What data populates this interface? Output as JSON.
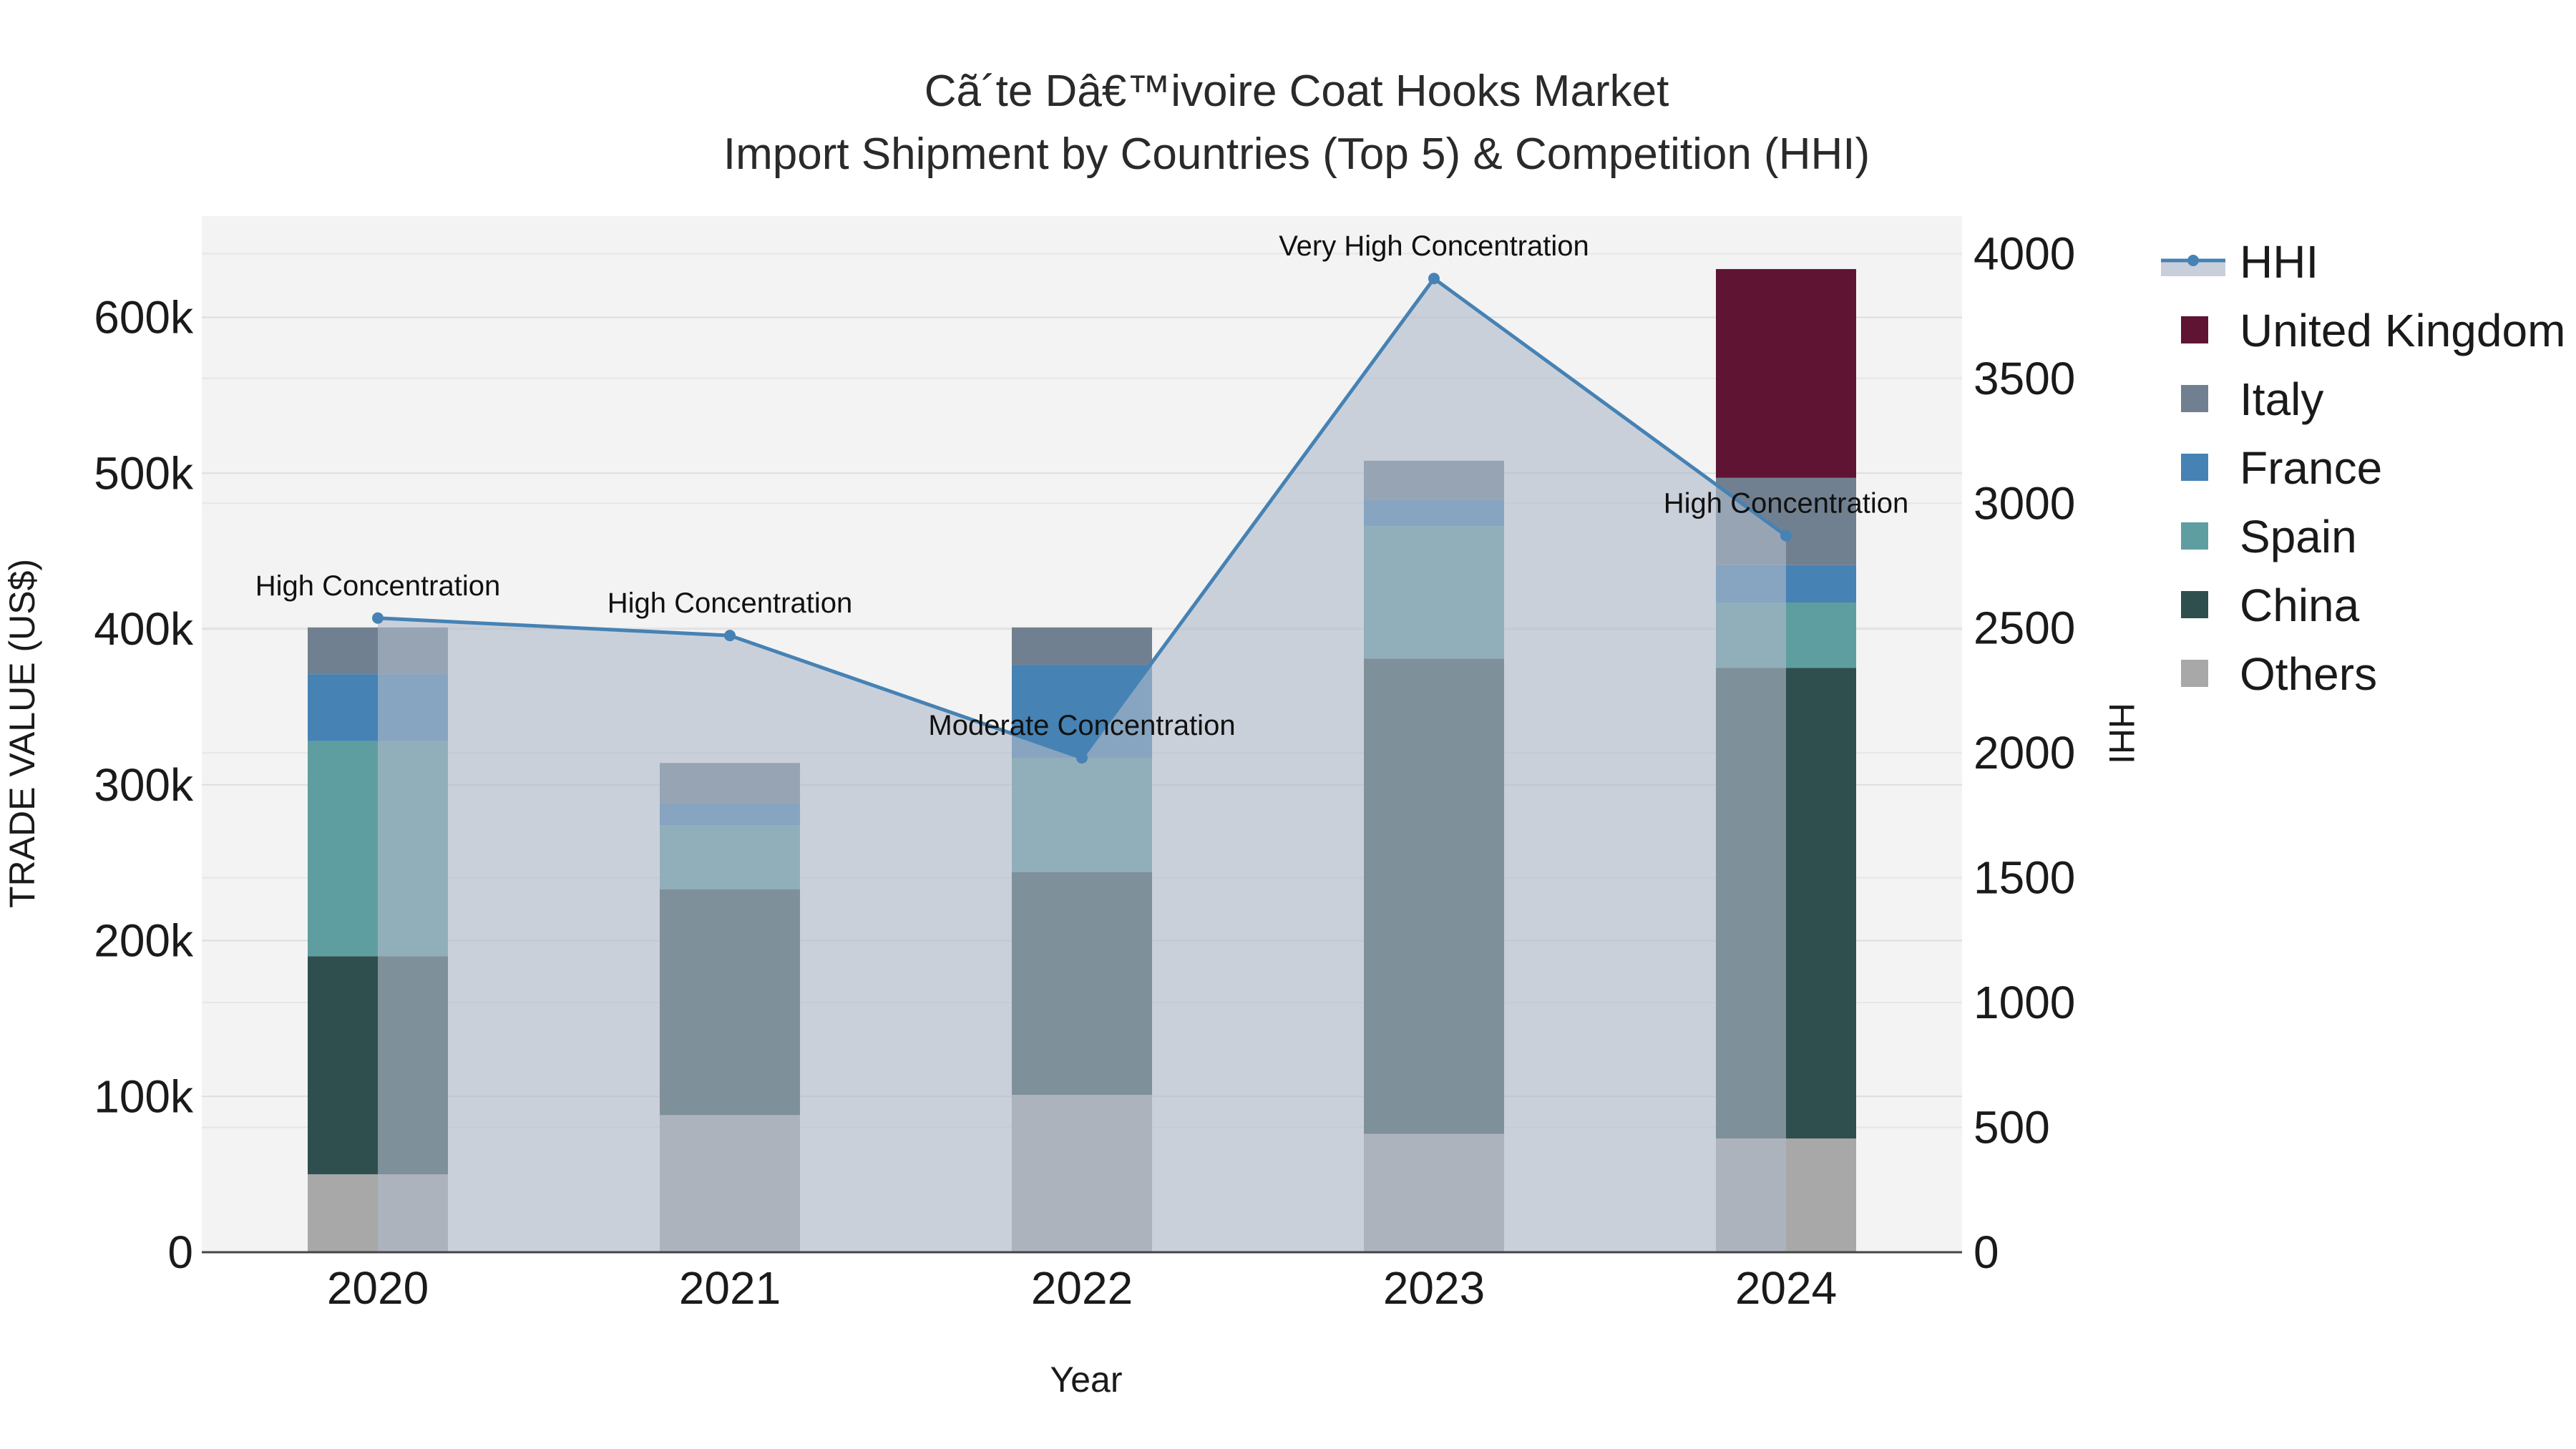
{
  "chart_data": {
    "type": "bar",
    "stacked": true,
    "title": "Cã´te Dâ€™ivoire Coat Hooks Market",
    "subtitle": "Import Shipment by Countries (Top 5) & Competition (HHI)",
    "xlabel": "Year",
    "ylabel": "TRADE VALUE (US$)",
    "y2label": "HHI",
    "categories": [
      "2020",
      "2021",
      "2022",
      "2023",
      "2024"
    ],
    "ylim": [
      0,
      665000
    ],
    "y2lim": [
      0,
      4150
    ],
    "yticks": [
      0,
      100000,
      200000,
      300000,
      400000,
      500000,
      600000
    ],
    "ytick_labels": [
      "0",
      "100k",
      "200k",
      "300k",
      "400k",
      "500k",
      "600k"
    ],
    "y2ticks": [
      0,
      500,
      1000,
      1500,
      2000,
      2500,
      3000,
      3500,
      4000
    ],
    "y2tick_labels": [
      "0",
      "500",
      "1000",
      "1500",
      "2000",
      "2500",
      "3000",
      "3500",
      "4000"
    ],
    "series": [
      {
        "name": "Others",
        "color": "#a8a8a8",
        "values": [
          50000,
          88000,
          101000,
          76000,
          73000
        ]
      },
      {
        "name": "China",
        "color": "#2f4f4f",
        "values": [
          140000,
          145000,
          143000,
          305000,
          302000
        ]
      },
      {
        "name": "Spain",
        "color": "#5f9ea0",
        "values": [
          138000,
          41000,
          73000,
          85000,
          42000
        ]
      },
      {
        "name": "France",
        "color": "#4682b4",
        "values": [
          43000,
          14000,
          60000,
          17000,
          24000
        ]
      },
      {
        "name": "Italy",
        "color": "#708090",
        "values": [
          30000,
          26000,
          24000,
          25000,
          56000
        ]
      },
      {
        "name": "United Kingdom",
        "color": "#601434",
        "values": [
          0,
          0,
          0,
          0,
          134000
        ]
      }
    ],
    "hhi": {
      "name": "HHI",
      "color": "#4682b4",
      "values": [
        2540,
        2470,
        1980,
        3900,
        2870
      ],
      "labels": [
        "High Concentration",
        "High Concentration",
        "Moderate Concentration",
        "Very High Concentration",
        "High Concentration"
      ]
    },
    "legend": [
      "HHI",
      "United Kingdom",
      "Italy",
      "France",
      "Spain",
      "China",
      "Others"
    ],
    "legend_position": "right"
  }
}
